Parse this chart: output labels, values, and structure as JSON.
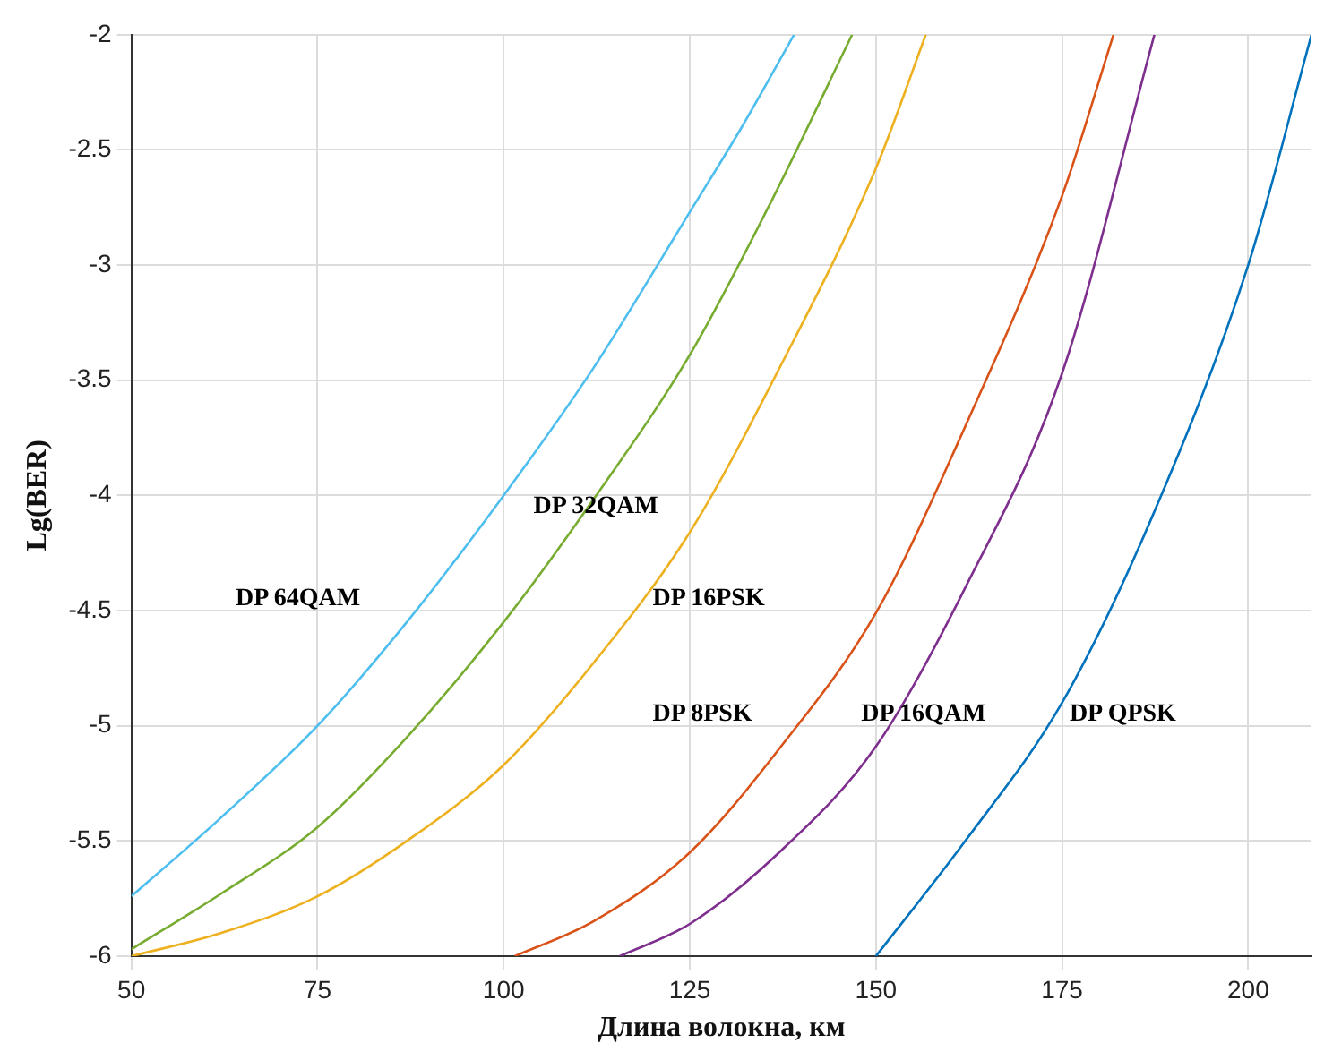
{
  "chart_data": {
    "type": "line",
    "xlabel": "Длина волокна, км",
    "ylabel": "Lg(BER)",
    "xlim": [
      50,
      208.5
    ],
    "ylim": [
      -6,
      -2
    ],
    "xticks": [
      50,
      75,
      100,
      125,
      150,
      175,
      200
    ],
    "yticks": [
      -6,
      -5.5,
      -5,
      -4.5,
      -4,
      -3.5,
      -3,
      -2.5,
      -2
    ],
    "grid": true,
    "legend": false,
    "marker": "none",
    "line_style": "solid",
    "series": [
      {
        "name": "DP 64QAM",
        "color": "#4dbeee",
        "x": [
          50,
          62,
          75,
          87,
          100,
          112,
          125,
          132,
          139
        ],
        "values": [
          -5.74,
          -5.4,
          -5.0,
          -4.55,
          -4.0,
          -3.45,
          -2.77,
          -2.4,
          -2.0
        ]
      },
      {
        "name": "DP 32QAM",
        "color": "#77ac30",
        "x": [
          50,
          62,
          75,
          87,
          100,
          112,
          125,
          136,
          146.8
        ],
        "values": [
          -5.97,
          -5.73,
          -5.44,
          -5.05,
          -4.55,
          -4.02,
          -3.39,
          -2.72,
          -2.0
        ]
      },
      {
        "name": "DP 16PSK",
        "color": "#edb120",
        "x": [
          50,
          62,
          75,
          87,
          100,
          112,
          125,
          137,
          150,
          156.7
        ],
        "values": [
          -6.0,
          -5.9,
          -5.74,
          -5.5,
          -5.17,
          -4.73,
          -4.16,
          -3.45,
          -2.58,
          -2.0
        ]
      },
      {
        "name": "DP 8PSK",
        "color": "#d95319",
        "x": [
          101.5,
          112,
          125,
          137,
          150,
          162,
          175,
          181.9
        ],
        "values": [
          -6.0,
          -5.85,
          -5.55,
          -5.1,
          -4.51,
          -3.7,
          -2.7,
          -2.0
        ]
      },
      {
        "name": "DP 16QAM",
        "color": "#7e2f8e",
        "x": [
          115.6,
          125,
          137,
          150,
          162,
          175,
          187.4
        ],
        "values": [
          -6.0,
          -5.86,
          -5.55,
          -5.09,
          -4.4,
          -3.47,
          -2.0
        ]
      },
      {
        "name": "DP QPSK",
        "color": "#0072bd",
        "x": [
          150,
          162,
          175,
          187,
          200,
          208.5
        ],
        "values": [
          -6.0,
          -5.5,
          -4.9,
          -4.1,
          -3.0,
          -2.0
        ]
      }
    ]
  }
}
